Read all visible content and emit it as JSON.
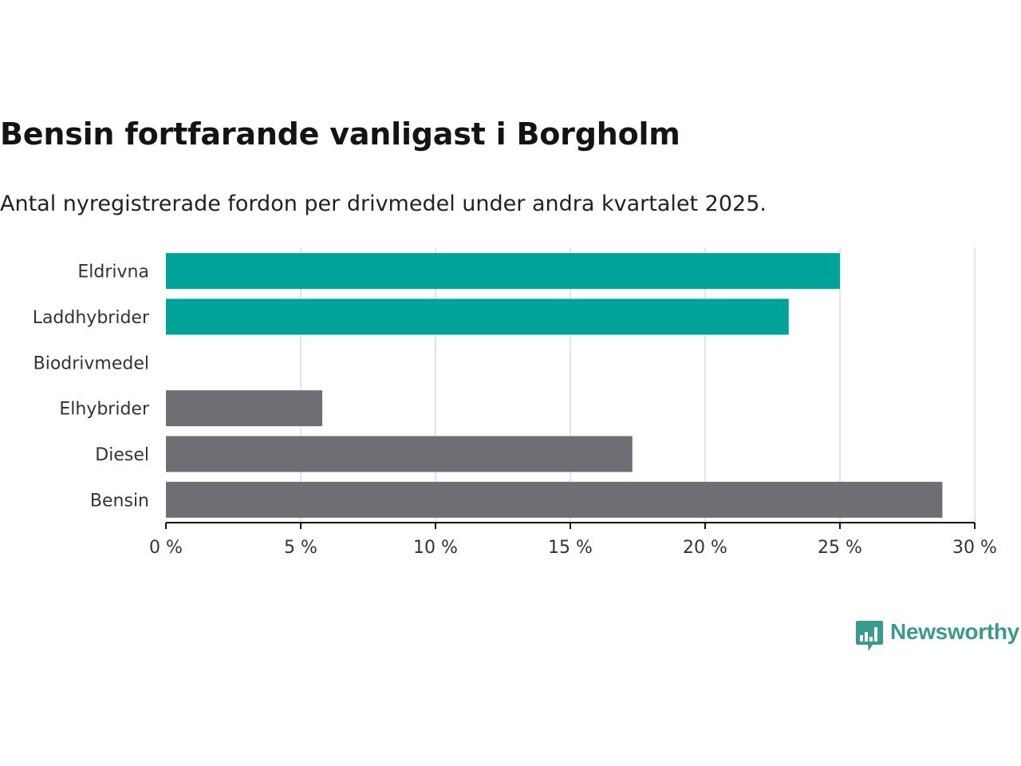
{
  "title": "Bensin fortfarande vanligast i Borgholm",
  "subtitle": "Antal nyregistrerade fordon per drivmedel under andra kvartalet 2025.",
  "brand": {
    "name": "Newsworthy",
    "color": "#3a9a8c",
    "icon": "bar-chart-speech-bubble-icon"
  },
  "colors": {
    "highlight": "#00a398",
    "base": "#6f6e74",
    "grid": "#dcdcdc",
    "axis": "#111111"
  },
  "chart_data": {
    "type": "bar",
    "orientation": "horizontal",
    "categories": [
      "Eldrivna",
      "Laddhybrider",
      "Biodrivmedel",
      "Elhybrider",
      "Diesel",
      "Bensin"
    ],
    "values": [
      25.0,
      23.1,
      0,
      5.8,
      17.3,
      28.8
    ],
    "highlighted": [
      true,
      true,
      false,
      false,
      false,
      false
    ],
    "xlim": [
      0,
      30
    ],
    "xticks": [
      0,
      5,
      10,
      15,
      20,
      25,
      30
    ],
    "xtick_labels": [
      "0 %",
      "5 %",
      "10 %",
      "15 %",
      "20 %",
      "25 %",
      "30 %"
    ],
    "grid": "vertical",
    "legend": "none"
  }
}
